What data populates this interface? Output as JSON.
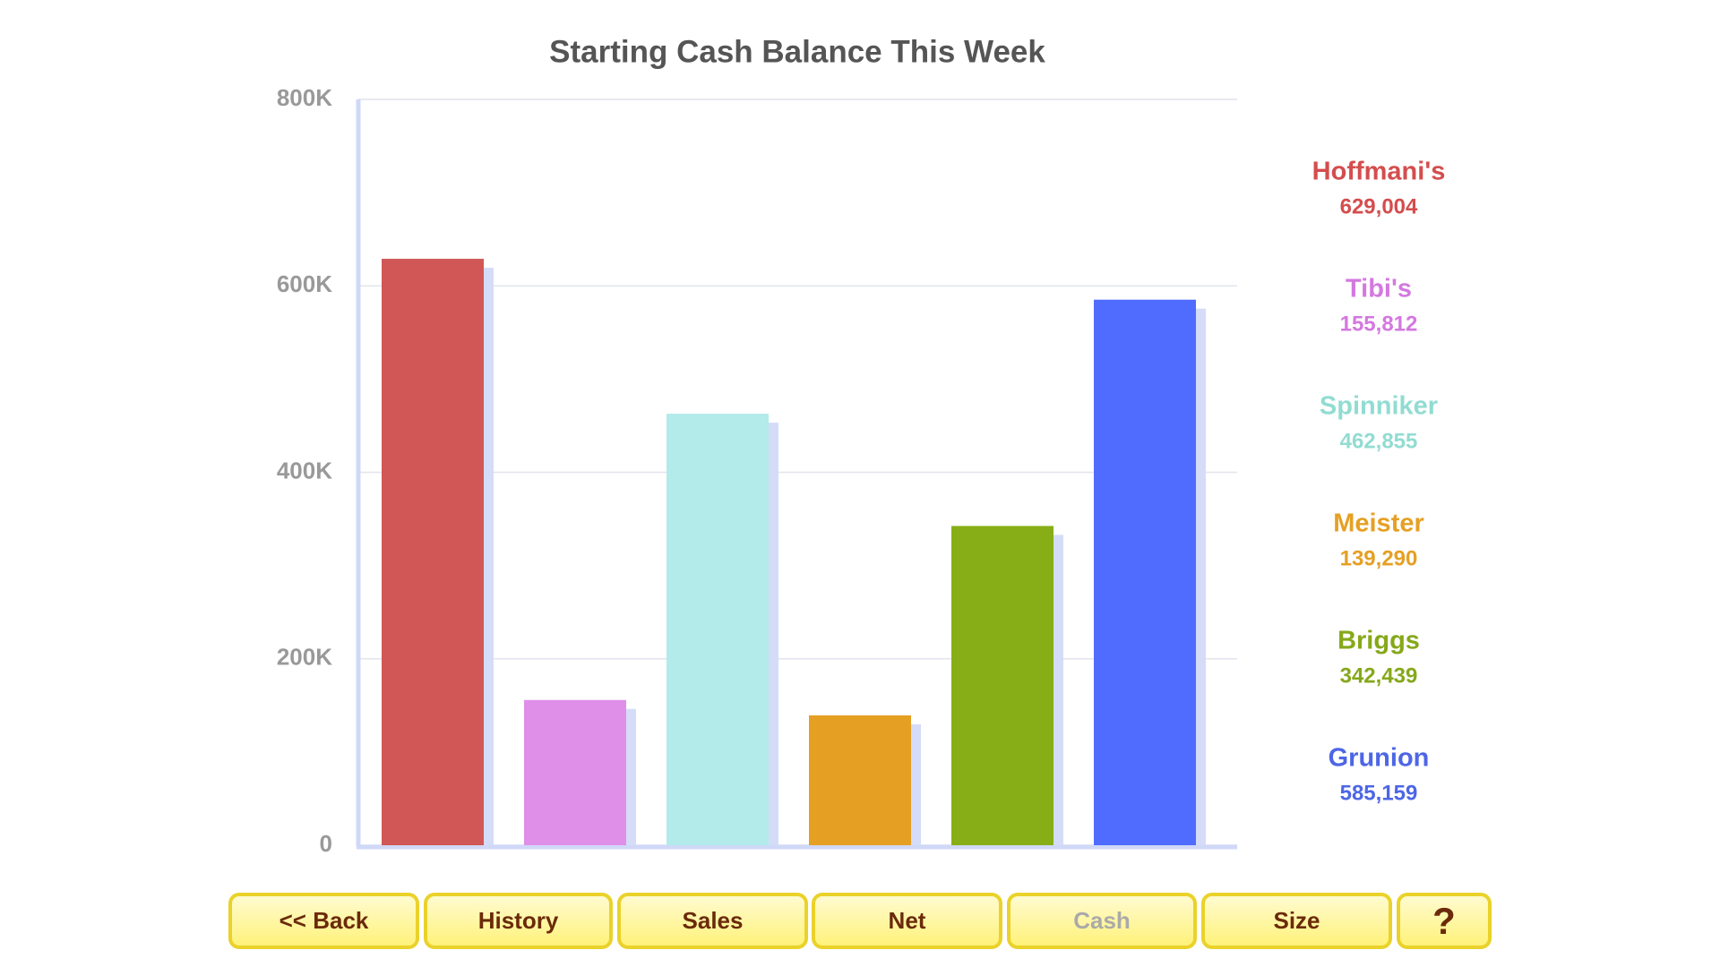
{
  "chart_data": {
    "type": "bar",
    "title": "Starting Cash Balance This Week",
    "categories": [
      "Hoffmani's",
      "Tibi's",
      "Spinniker",
      "Meister",
      "Briggs",
      "Grunion"
    ],
    "values": [
      629004,
      155812,
      462855,
      139290,
      342439,
      585159
    ],
    "value_labels": [
      "629,004",
      "155,812",
      "462,855",
      "139,290",
      "342,439",
      "585,159"
    ],
    "colors": [
      "#d15757",
      "#df8fe8",
      "#b3eaea",
      "#e5a024",
      "#88ae17",
      "#506cff"
    ],
    "label_colors": [
      "#d44d4d",
      "#d478e0",
      "#92dcd2",
      "#e5a024",
      "#86a81a",
      "#4d66e6"
    ],
    "ylim": [
      0,
      800000
    ],
    "yticks": [
      0,
      {
        "value": 200000,
        "label": "200K"
      },
      {
        "value": 400000,
        "label": "400K"
      },
      {
        "value": 600000,
        "label": "600K"
      },
      {
        "value": 800000,
        "label": "800K"
      }
    ],
    "grid": true
  },
  "buttons": [
    "<< Back",
    "History",
    "Sales",
    "Net",
    "Cash",
    "Size",
    "?"
  ],
  "selected_button": 4
}
